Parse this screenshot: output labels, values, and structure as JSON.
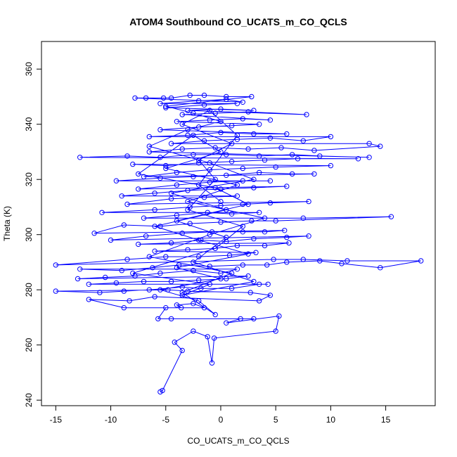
{
  "chart_data": {
    "type": "line",
    "title": "ATOM4 Southbound CO_UCATS_m_CO_QCLS",
    "xlabel": "CO_UCATS_m_CO_QCLS",
    "ylabel": "Theta (K)",
    "xlim": [
      -16.3,
      19.5
    ],
    "ylim": [
      238,
      370
    ],
    "xticks": [
      -15,
      -10,
      -5,
      0,
      5,
      10,
      15
    ],
    "yticks": [
      240,
      260,
      280,
      300,
      320,
      340,
      360
    ],
    "xtick_labels": [
      "-15",
      "-10",
      "-5",
      "0",
      "5",
      "10",
      "15"
    ],
    "ytick_labels": [
      "240",
      "260",
      "280",
      "300",
      "320",
      "340",
      "360"
    ],
    "grid": false,
    "colors": {
      "series": "#0000ff",
      "axis": "#000000"
    },
    "series": [
      {
        "name": "CO_UCATS_m_CO_QCLS",
        "marker": "open-circle",
        "points": [
          [
            -5.5,
            243
          ],
          [
            -5.3,
            243.5
          ],
          [
            -3.5,
            258
          ],
          [
            -4.2,
            261
          ],
          [
            -2.5,
            265
          ],
          [
            -1.2,
            263
          ],
          [
            -0.8,
            253.5
          ],
          [
            -0.6,
            262.5
          ],
          [
            5.0,
            265
          ],
          [
            5.3,
            270.5
          ],
          [
            0.5,
            268
          ],
          [
            1.8,
            269.5
          ],
          [
            3.0,
            269.5
          ],
          [
            -4.5,
            269.5
          ],
          [
            -5.7,
            269.5
          ],
          [
            -5.0,
            273.5
          ],
          [
            -3.6,
            273.5
          ],
          [
            -4.0,
            274.5
          ],
          [
            -2.5,
            275
          ],
          [
            -1.5,
            273.5
          ],
          [
            -8.8,
            273.5
          ],
          [
            -12.0,
            276.5
          ],
          [
            -8.3,
            276
          ],
          [
            -6.0,
            277.5
          ],
          [
            3.5,
            276
          ],
          [
            4.5,
            278
          ],
          [
            2.7,
            279
          ],
          [
            -3.0,
            279.5
          ],
          [
            -4.8,
            280
          ],
          [
            -15.0,
            279.5
          ],
          [
            -11.0,
            279
          ],
          [
            -8.8,
            279.5
          ],
          [
            -6.5,
            280
          ],
          [
            -3.5,
            281
          ],
          [
            -1.8,
            280.5
          ],
          [
            1.0,
            280.5
          ],
          [
            3.5,
            282
          ],
          [
            4.3,
            282
          ],
          [
            -12.0,
            282
          ],
          [
            -9.5,
            282.5
          ],
          [
            -7.0,
            283
          ],
          [
            -4.5,
            283
          ],
          [
            -2.0,
            283.5
          ],
          [
            0.5,
            284
          ],
          [
            2.5,
            285
          ],
          [
            -13.0,
            284
          ],
          [
            -10.5,
            284.5
          ],
          [
            -7.8,
            285
          ],
          [
            -5.5,
            286
          ],
          [
            -2.5,
            287
          ],
          [
            0.0,
            286
          ],
          [
            1.5,
            287.5
          ],
          [
            -12.8,
            287.5
          ],
          [
            -9.0,
            287
          ],
          [
            -6.2,
            288
          ],
          [
            -3.8,
            289
          ],
          [
            -1.0,
            288.5
          ],
          [
            2.0,
            289
          ],
          [
            4.2,
            289
          ],
          [
            6.0,
            290
          ],
          [
            9.0,
            290.5
          ],
          [
            11.0,
            289.5
          ],
          [
            14.5,
            288
          ],
          [
            18.2,
            290.5
          ],
          [
            11.5,
            290.5
          ],
          [
            7.5,
            291
          ],
          [
            4.8,
            291
          ],
          [
            -15.0,
            289
          ],
          [
            -8.5,
            291
          ],
          [
            -5.0,
            292
          ],
          [
            -2.0,
            292
          ],
          [
            0.8,
            292.5
          ],
          [
            3.2,
            293.5
          ],
          [
            -6.0,
            294
          ],
          [
            -3.0,
            294.5
          ],
          [
            -0.5,
            295
          ],
          [
            1.5,
            296
          ],
          [
            4.0,
            296
          ],
          [
            6.2,
            297
          ],
          [
            -7.5,
            296.5
          ],
          [
            -4.5,
            297
          ],
          [
            -1.8,
            298
          ],
          [
            0.5,
            297.5
          ],
          [
            3.0,
            298.5
          ],
          [
            6.0,
            299
          ],
          [
            8.0,
            299.5
          ],
          [
            -10.0,
            298
          ],
          [
            -6.8,
            299.5
          ],
          [
            -3.5,
            300.5
          ],
          [
            -0.8,
            301
          ],
          [
            2.0,
            301
          ],
          [
            4.0,
            301
          ],
          [
            5.8,
            301.5
          ],
          [
            -11.5,
            300.5
          ],
          [
            -8.8,
            303.5
          ],
          [
            -5.5,
            303
          ],
          [
            -2.8,
            304
          ],
          [
            0.0,
            304.5
          ],
          [
            2.8,
            305
          ],
          [
            5.0,
            305
          ],
          [
            15.5,
            306.5
          ],
          [
            7.5,
            306
          ],
          [
            -7.0,
            306
          ],
          [
            -4.0,
            307
          ],
          [
            -1.2,
            308
          ],
          [
            1.0,
            307.5
          ],
          [
            3.5,
            308
          ],
          [
            -10.8,
            308
          ],
          [
            -6.0,
            309
          ],
          [
            -2.8,
            310
          ],
          [
            0.0,
            310.5
          ],
          [
            2.0,
            311
          ],
          [
            4.5,
            311.5
          ],
          [
            8.0,
            312
          ],
          [
            -8.5,
            311
          ],
          [
            -4.5,
            313
          ],
          [
            -1.5,
            313.5
          ],
          [
            1.5,
            314
          ],
          [
            -9.0,
            314
          ],
          [
            -6.0,
            315
          ],
          [
            -3.0,
            316
          ],
          [
            0.0,
            316.5
          ],
          [
            3.0,
            317
          ],
          [
            6.0,
            317.5
          ],
          [
            -7.5,
            316.5
          ],
          [
            -4.0,
            318
          ],
          [
            -1.0,
            319
          ],
          [
            2.0,
            319.5
          ],
          [
            4.5,
            319.5
          ],
          [
            -9.5,
            319.5
          ],
          [
            -5.5,
            320.5
          ],
          [
            -2.5,
            321
          ],
          [
            0.5,
            321.5
          ],
          [
            3.5,
            322.5
          ],
          [
            6.5,
            322
          ],
          [
            8.5,
            322
          ],
          [
            -7.0,
            321
          ],
          [
            -4.0,
            322.5
          ],
          [
            -1.0,
            323.5
          ],
          [
            2.0,
            324
          ],
          [
            5.0,
            324.5
          ],
          [
            10.0,
            325
          ],
          [
            -8.0,
            325.5
          ],
          [
            -5.0,
            325
          ],
          [
            -2.0,
            326
          ],
          [
            1.0,
            326.5
          ],
          [
            4.0,
            327
          ],
          [
            7.0,
            327.5
          ],
          [
            12.5,
            327.5
          ],
          [
            -12.8,
            328
          ],
          [
            -8.5,
            328.5
          ],
          [
            -5.5,
            328
          ],
          [
            -2.5,
            329
          ],
          [
            0.5,
            329
          ],
          [
            3.5,
            328.5
          ],
          [
            6.5,
            329
          ],
          [
            9.0,
            328.5
          ],
          [
            13.5,
            328
          ],
          [
            -6.5,
            330
          ],
          [
            -3.5,
            331
          ],
          [
            -0.5,
            331.5
          ],
          [
            2.5,
            331
          ],
          [
            5.5,
            331.5
          ],
          [
            8.5,
            330.5
          ],
          [
            14.5,
            332
          ],
          [
            13.5,
            333
          ],
          [
            -4.5,
            333
          ],
          [
            -1.5,
            334
          ],
          [
            1.5,
            334.5
          ],
          [
            4.5,
            335
          ],
          [
            7.5,
            334
          ],
          [
            10.0,
            335.5
          ],
          [
            -6.5,
            335.5
          ],
          [
            -3.0,
            336
          ],
          [
            0.0,
            337
          ],
          [
            3.0,
            336.5
          ],
          [
            6.0,
            336.5
          ],
          [
            -5.5,
            338
          ],
          [
            -2.0,
            339
          ],
          [
            1.0,
            339.5
          ],
          [
            3.5,
            340
          ],
          [
            -4.0,
            341
          ],
          [
            -1.0,
            341.5
          ],
          [
            2.0,
            342
          ],
          [
            4.5,
            341.5
          ],
          [
            -3.5,
            343.5
          ],
          [
            -0.5,
            344
          ],
          [
            2.5,
            344.5
          ],
          [
            7.8,
            343.5
          ],
          [
            -3.0,
            345
          ],
          [
            0.0,
            345.5
          ],
          [
            3.0,
            345
          ],
          [
            -5.0,
            346
          ],
          [
            -1.5,
            347
          ],
          [
            1.5,
            347.5
          ],
          [
            -5.5,
            347.5
          ],
          [
            -2.0,
            348.5
          ],
          [
            0.5,
            349
          ],
          [
            2.0,
            348
          ],
          [
            -7.8,
            349.5
          ],
          [
            -6.8,
            349.5
          ],
          [
            -5.2,
            349.5
          ],
          [
            -4.5,
            349.5
          ],
          [
            -2.8,
            350.5
          ],
          [
            -1.5,
            350.5
          ],
          [
            0.5,
            350
          ],
          [
            2.8,
            350
          ],
          [
            -5.0,
            346.5
          ],
          [
            -2.5,
            344
          ],
          [
            0.0,
            341
          ],
          [
            -3.0,
            338
          ],
          [
            -6.5,
            332
          ],
          [
            -1.0,
            326
          ],
          [
            3.0,
            320
          ],
          [
            -4.5,
            315
          ],
          [
            0.5,
            309
          ],
          [
            -6.0,
            303
          ],
          [
            -2.0,
            298
          ],
          [
            2.5,
            293
          ],
          [
            -4.0,
            288
          ],
          [
            0.0,
            284
          ],
          [
            -5.5,
            280
          ],
          [
            -2.0,
            276
          ],
          [
            -0.5,
            271
          ],
          [
            -3.5,
            279
          ],
          [
            1.0,
            286
          ],
          [
            -6.5,
            292
          ],
          [
            -1.0,
            300
          ],
          [
            4.0,
            306
          ],
          [
            -3.0,
            312
          ],
          [
            1.5,
            318
          ],
          [
            -5.0,
            324
          ],
          [
            0.0,
            330
          ],
          [
            -2.5,
            336
          ],
          [
            -7.5,
            322
          ],
          [
            -0.5,
            317
          ],
          [
            2.5,
            311
          ],
          [
            -4.0,
            305
          ],
          [
            0.5,
            299
          ],
          [
            -2.5,
            290
          ],
          [
            3.0,
            283
          ],
          [
            -3.5,
            278
          ],
          [
            -1.0,
            282
          ],
          [
            -8.0,
            286
          ],
          [
            -0.5,
            295
          ],
          [
            2.0,
            303
          ],
          [
            -3.0,
            309
          ],
          [
            -0.5,
            320
          ],
          [
            -2.0,
            327
          ],
          [
            1.0,
            333
          ],
          [
            -3.5,
            340
          ],
          [
            -1.0,
            345
          ],
          [
            1.5,
            336
          ],
          [
            -2.0,
            318
          ],
          [
            0.0,
            312
          ]
        ]
      }
    ]
  }
}
